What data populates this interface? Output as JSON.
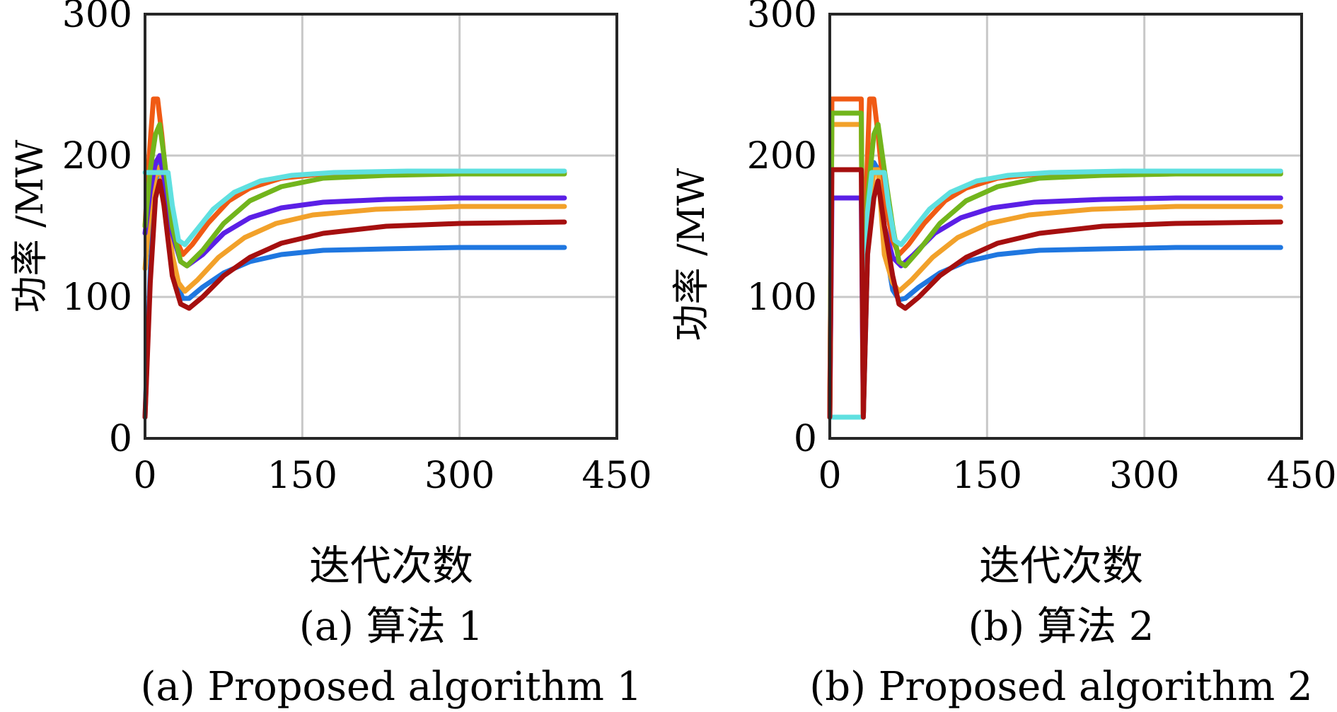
{
  "colors": {
    "s1": "#1f77e0",
    "s2": "#f05a14",
    "s3": "#f2a12a",
    "s4": "#5b1fe6",
    "s5": "#72b51c",
    "s6": "#5fe0e0",
    "s7": "#a50f0f"
  },
  "chart_data": [
    {
      "type": "line",
      "xlabel": "迭代次数",
      "ylabel": "功率 /MW",
      "caption_cn": "(a) 算法 1",
      "caption_en": "(a) Proposed algorithm 1",
      "xlim": [
        0,
        450
      ],
      "ylim": [
        0,
        300
      ],
      "xticks": [
        "0",
        "150",
        "300",
        "450"
      ],
      "yticks": [
        "0",
        "100",
        "200",
        "300"
      ],
      "grid": true,
      "series": [
        {
          "color": "#1f77e0",
          "points": [
            [
              0,
              15
            ],
            [
              5,
              120
            ],
            [
              10,
              180
            ],
            [
              14,
              200
            ],
            [
              18,
              185
            ],
            [
              24,
              140
            ],
            [
              30,
              110
            ],
            [
              36,
              99
            ],
            [
              42,
              99
            ],
            [
              55,
              107
            ],
            [
              75,
              117
            ],
            [
              100,
              125
            ],
            [
              130,
              130
            ],
            [
              170,
              133
            ],
            [
              230,
              134
            ],
            [
              300,
              135
            ],
            [
              400,
              135
            ]
          ]
        },
        {
          "color": "#f05a14",
          "points": [
            [
              0,
              150
            ],
            [
              4,
              200
            ],
            [
              8,
              240
            ],
            [
              12,
              240
            ],
            [
              16,
              215
            ],
            [
              22,
              170
            ],
            [
              30,
              140
            ],
            [
              36,
              130
            ],
            [
              45,
              137
            ],
            [
              60,
              152
            ],
            [
              80,
              168
            ],
            [
              100,
              177
            ],
            [
              130,
              184
            ],
            [
              170,
              187
            ],
            [
              230,
              188
            ],
            [
              300,
              188
            ],
            [
              400,
              188
            ]
          ]
        },
        {
          "color": "#f2a12a",
          "points": [
            [
              0,
              120
            ],
            [
              5,
              165
            ],
            [
              10,
              185
            ],
            [
              14,
              192
            ],
            [
              18,
              175
            ],
            [
              26,
              130
            ],
            [
              32,
              110
            ],
            [
              38,
              104
            ],
            [
              50,
              112
            ],
            [
              70,
              128
            ],
            [
              95,
              142
            ],
            [
              125,
              152
            ],
            [
              160,
              158
            ],
            [
              220,
              162
            ],
            [
              300,
              164
            ],
            [
              400,
              164
            ]
          ]
        },
        {
          "color": "#5b1fe6",
          "points": [
            [
              0,
              145
            ],
            [
              5,
              175
            ],
            [
              10,
              195
            ],
            [
              14,
              200
            ],
            [
              18,
              185
            ],
            [
              26,
              145
            ],
            [
              34,
              125
            ],
            [
              40,
              122
            ],
            [
              55,
              130
            ],
            [
              75,
              145
            ],
            [
              100,
              156
            ],
            [
              130,
              163
            ],
            [
              170,
              167
            ],
            [
              230,
              169
            ],
            [
              300,
              170
            ],
            [
              400,
              170
            ]
          ]
        },
        {
          "color": "#72b51c",
          "points": [
            [
              0,
              150
            ],
            [
              5,
              190
            ],
            [
              10,
              215
            ],
            [
              14,
              222
            ],
            [
              18,
              200
            ],
            [
              26,
              150
            ],
            [
              34,
              125
            ],
            [
              40,
              122
            ],
            [
              55,
              133
            ],
            [
              75,
              152
            ],
            [
              100,
              168
            ],
            [
              130,
              178
            ],
            [
              170,
              184
            ],
            [
              230,
              186
            ],
            [
              300,
              187
            ],
            [
              400,
              187
            ]
          ]
        },
        {
          "color": "#5fe0e0",
          "points": [
            [
              0,
              188
            ],
            [
              22,
              188
            ],
            [
              26,
              165
            ],
            [
              32,
              140
            ],
            [
              38,
              137
            ],
            [
              50,
              148
            ],
            [
              65,
              162
            ],
            [
              85,
              174
            ],
            [
              110,
              182
            ],
            [
              140,
              186
            ],
            [
              180,
              188
            ],
            [
              250,
              189
            ],
            [
              400,
              189
            ]
          ]
        },
        {
          "color": "#a50f0f",
          "points": [
            [
              0,
              15
            ],
            [
              5,
              110
            ],
            [
              10,
              170
            ],
            [
              14,
              182
            ],
            [
              18,
              165
            ],
            [
              26,
              115
            ],
            [
              34,
              95
            ],
            [
              42,
              92
            ],
            [
              55,
              100
            ],
            [
              75,
              115
            ],
            [
              100,
              128
            ],
            [
              130,
              138
            ],
            [
              170,
              145
            ],
            [
              230,
              150
            ],
            [
              300,
              152
            ],
            [
              400,
              153
            ]
          ]
        }
      ]
    },
    {
      "type": "line",
      "xlabel": "迭代次数",
      "ylabel": "功率 /MW",
      "caption_cn": "(b) 算法 2",
      "caption_en": "(b) Proposed algorithm 2",
      "xlim": [
        0,
        450
      ],
      "ylim": [
        0,
        300
      ],
      "xticks": [
        "0",
        "150",
        "300",
        "450"
      ],
      "yticks": [
        "0",
        "100",
        "200",
        "300"
      ],
      "grid": true,
      "series": [
        {
          "color": "#5b1fe6",
          "points": [
            [
              0,
              15
            ],
            [
              2,
              170
            ],
            [
              30,
              170
            ],
            [
              32,
              15
            ],
            [
              36,
              150
            ],
            [
              42,
              195
            ],
            [
              46,
              190
            ],
            [
              52,
              150
            ],
            [
              60,
              128
            ],
            [
              68,
              122
            ],
            [
              80,
              130
            ],
            [
              100,
              145
            ],
            [
              125,
              156
            ],
            [
              155,
              163
            ],
            [
              195,
              167
            ],
            [
              260,
              169
            ],
            [
              330,
              170
            ],
            [
              430,
              170
            ]
          ]
        },
        {
          "color": "#1f77e0",
          "points": [
            [
              0,
              15
            ],
            [
              32,
              15
            ],
            [
              36,
              130
            ],
            [
              42,
              195
            ],
            [
              46,
              190
            ],
            [
              52,
              140
            ],
            [
              60,
              105
            ],
            [
              66,
              98
            ],
            [
              72,
              99
            ],
            [
              85,
              107
            ],
            [
              105,
              117
            ],
            [
              130,
              125
            ],
            [
              160,
              130
            ],
            [
              200,
              133
            ],
            [
              260,
              134
            ],
            [
              330,
              135
            ],
            [
              430,
              135
            ]
          ]
        },
        {
          "color": "#f05a14",
          "points": [
            [
              0,
              15
            ],
            [
              2,
              240
            ],
            [
              30,
              240
            ],
            [
              32,
              15
            ],
            [
              35,
              180
            ],
            [
              38,
              240
            ],
            [
              42,
              240
            ],
            [
              46,
              215
            ],
            [
              52,
              170
            ],
            [
              60,
              140
            ],
            [
              66,
              130
            ],
            [
              75,
              137
            ],
            [
              90,
              152
            ],
            [
              110,
              168
            ],
            [
              130,
              177
            ],
            [
              160,
              184
            ],
            [
              200,
              187
            ],
            [
              260,
              188
            ],
            [
              330,
              188
            ],
            [
              430,
              188
            ]
          ]
        },
        {
          "color": "#f2a12a",
          "points": [
            [
              0,
              15
            ],
            [
              2,
              222
            ],
            [
              30,
              222
            ],
            [
              32,
              15
            ],
            [
              36,
              140
            ],
            [
              42,
              190
            ],
            [
              46,
              190
            ],
            [
              52,
              130
            ],
            [
              60,
              110
            ],
            [
              66,
              104
            ],
            [
              78,
              112
            ],
            [
              98,
              128
            ],
            [
              122,
              142
            ],
            [
              152,
              152
            ],
            [
              190,
              158
            ],
            [
              250,
              162
            ],
            [
              330,
              164
            ],
            [
              430,
              164
            ]
          ]
        },
        {
          "color": "#72b51c",
          "points": [
            [
              0,
              15
            ],
            [
              2,
              230
            ],
            [
              30,
              230
            ],
            [
              32,
              15
            ],
            [
              36,
              170
            ],
            [
              42,
              215
            ],
            [
              46,
              222
            ],
            [
              52,
              190
            ],
            [
              60,
              150
            ],
            [
              66,
              125
            ],
            [
              72,
              122
            ],
            [
              85,
              133
            ],
            [
              105,
              152
            ],
            [
              130,
              168
            ],
            [
              160,
              178
            ],
            [
              200,
              184
            ],
            [
              260,
              186
            ],
            [
              330,
              187
            ],
            [
              430,
              187
            ]
          ]
        },
        {
          "color": "#5fe0e0",
          "points": [
            [
              0,
              15
            ],
            [
              32,
              15
            ],
            [
              36,
              160
            ],
            [
              40,
              188
            ],
            [
              52,
              188
            ],
            [
              56,
              165
            ],
            [
              62,
              140
            ],
            [
              68,
              137
            ],
            [
              80,
              148
            ],
            [
              95,
              162
            ],
            [
              115,
              174
            ],
            [
              140,
              182
            ],
            [
              170,
              186
            ],
            [
              210,
              188
            ],
            [
              280,
              189
            ],
            [
              430,
              189
            ]
          ]
        },
        {
          "color": "#a50f0f",
          "points": [
            [
              0,
              15
            ],
            [
              2,
              190
            ],
            [
              30,
              190
            ],
            [
              32,
              15
            ],
            [
              36,
              130
            ],
            [
              42,
              170
            ],
            [
              46,
              182
            ],
            [
              52,
              150
            ],
            [
              60,
              115
            ],
            [
              66,
              95
            ],
            [
              72,
              92
            ],
            [
              85,
              100
            ],
            [
              105,
              115
            ],
            [
              130,
              128
            ],
            [
              160,
              138
            ],
            [
              200,
              145
            ],
            [
              260,
              150
            ],
            [
              330,
              152
            ],
            [
              430,
              153
            ]
          ]
        }
      ]
    }
  ]
}
